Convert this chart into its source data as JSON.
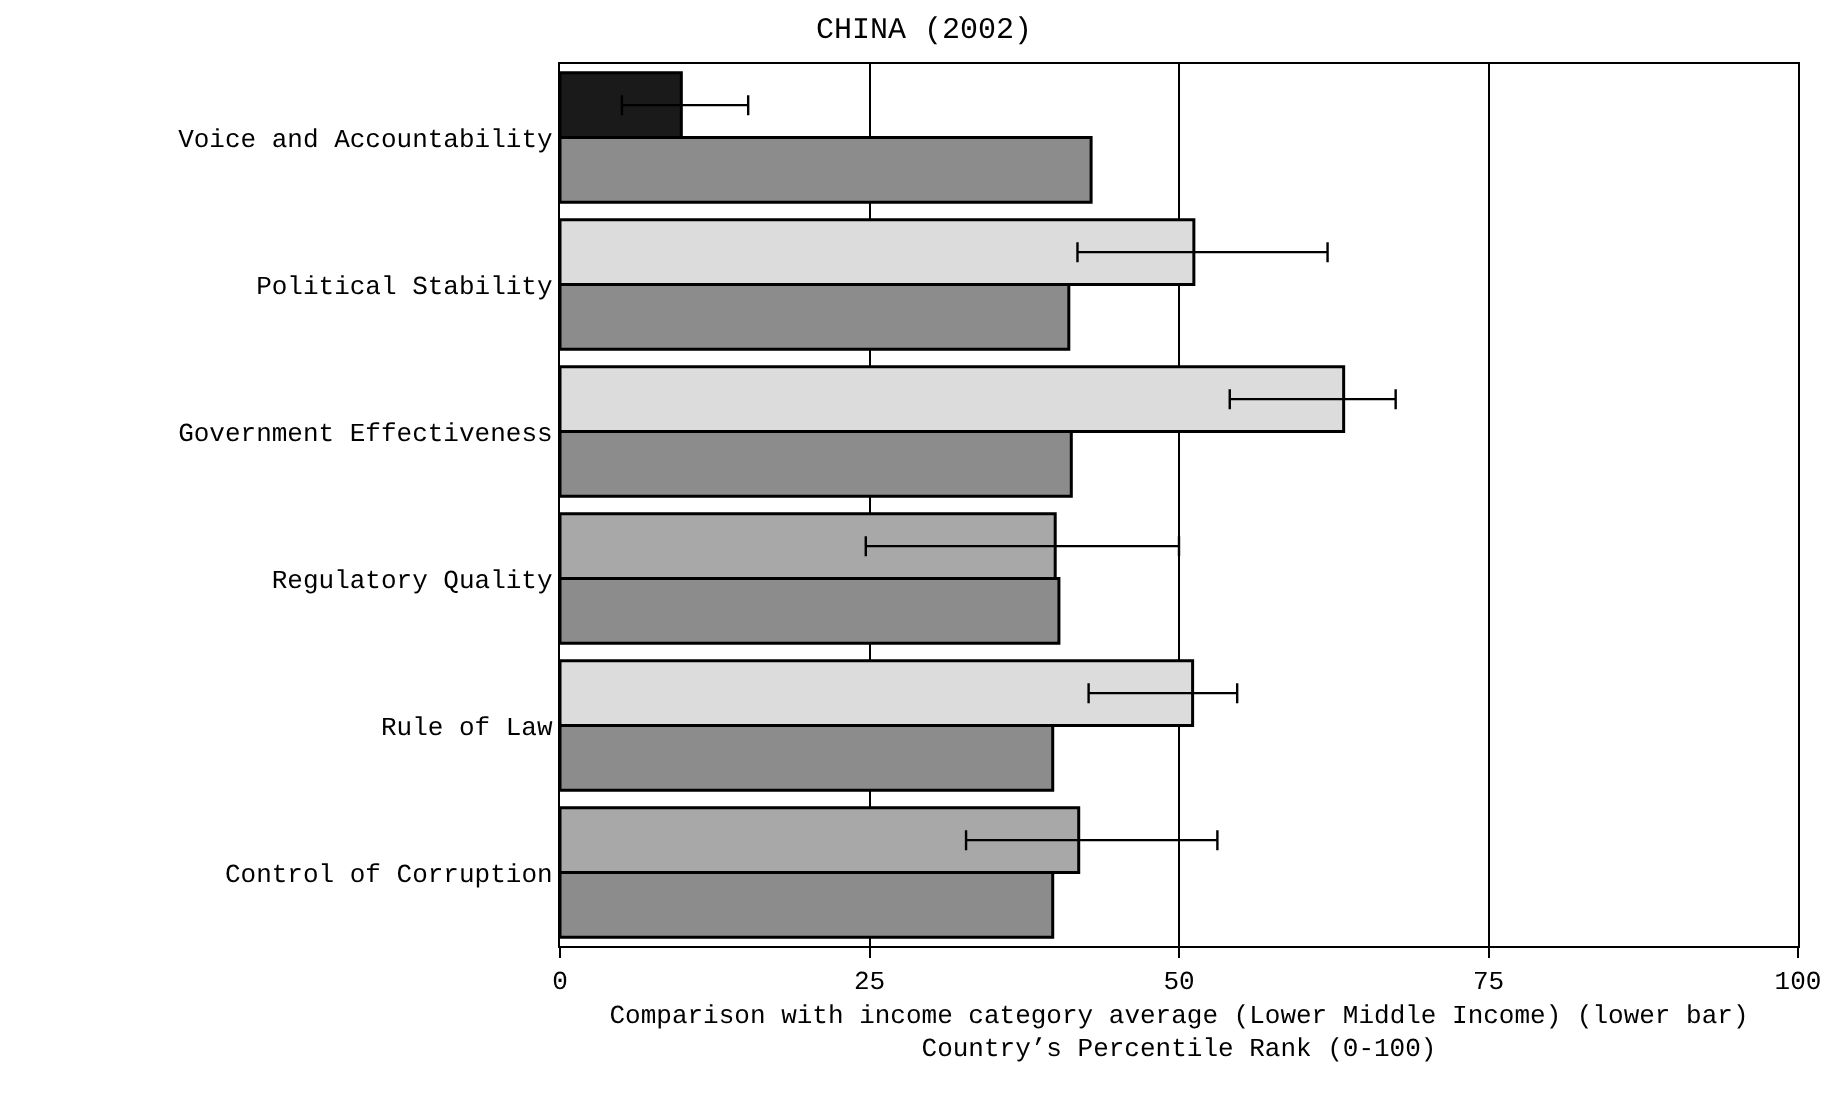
{
  "chart_data": {
    "type": "bar",
    "orientation": "horizontal",
    "title": "CHINA (2002)",
    "xlabel": "Comparison with income category average (Lower Middle Income) (lower bar)\nCountry’s Percentile Rank (0-100)",
    "categories": [
      "Voice and Accountability",
      "Political Stability",
      "Government Effectiveness",
      "Regulatory Quality",
      "Rule of Law",
      "Control of Corruption"
    ],
    "series": [
      {
        "colors": [
          "#1a1a1a",
          "#dcdcdc",
          "#dcdcdc",
          "#a8a8a8",
          "#dcdcdc",
          "#a8a8a8"
        ],
        "values": [
          9.8,
          51.2,
          63.3,
          40.0,
          51.1,
          41.9
        ],
        "errors": [
          [
            5,
            15.2
          ],
          [
            41.8,
            62.0
          ],
          [
            54.1,
            67.5
          ],
          [
            24.7,
            50.0
          ],
          [
            42.7,
            54.7
          ],
          [
            32.8,
            53.1
          ]
        ]
      },
      {
        "color": "#8c8c8c",
        "values": [
          42.9,
          41.1,
          41.3,
          40.3,
          39.8,
          39.8
        ]
      }
    ],
    "xlim": [
      0,
      100
    ],
    "xticks": [
      0,
      25,
      50,
      75,
      100
    ],
    "grid": "x",
    "legend": false
  }
}
